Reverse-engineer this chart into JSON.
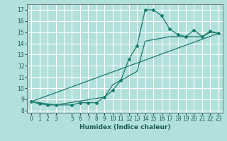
{
  "xlabel": "Humidex (Indice chaleur)",
  "ylabel": "",
  "background_color": "#b2e0dc",
  "grid_color": "#ffffff",
  "line_color": "#1a7a6e",
  "xlim": [
    -0.5,
    23.5
  ],
  "ylim": [
    7.8,
    17.5
  ],
  "yticks": [
    8,
    9,
    10,
    11,
    12,
    13,
    14,
    15,
    16,
    17
  ],
  "xtick_positions": [
    0,
    1,
    2,
    3,
    5,
    6,
    7,
    8,
    9,
    10,
    11,
    12,
    13,
    14,
    15,
    16,
    17,
    18,
    19,
    20,
    21,
    22,
    23
  ],
  "xtick_labels": [
    "0",
    "1",
    "2",
    "3",
    "5",
    "6",
    "7",
    "8",
    "9",
    "10",
    "11",
    "12",
    "13",
    "14",
    "15",
    "16",
    "17",
    "18",
    "19",
    "20",
    "21",
    "22",
    "23"
  ],
  "grid_x": [
    0,
    1,
    2,
    3,
    4,
    5,
    6,
    7,
    8,
    9,
    10,
    11,
    12,
    13,
    14,
    15,
    16,
    17,
    18,
    19,
    20,
    21,
    22,
    23
  ],
  "line1_x": [
    0,
    1,
    2,
    3,
    5,
    6,
    7,
    8,
    9,
    10,
    11,
    12,
    13,
    14,
    15,
    16,
    17,
    18,
    19,
    20,
    21,
    22,
    23
  ],
  "line1_y": [
    8.8,
    8.6,
    8.5,
    8.5,
    8.5,
    8.7,
    8.7,
    8.7,
    9.2,
    9.8,
    10.7,
    12.6,
    13.8,
    17.0,
    17.0,
    16.5,
    15.3,
    14.8,
    14.6,
    15.2,
    14.6,
    15.1,
    14.9
  ],
  "line2_x": [
    0,
    3,
    9,
    10,
    13,
    14,
    17,
    18,
    21,
    22,
    23
  ],
  "line2_y": [
    8.8,
    8.5,
    9.2,
    10.3,
    11.5,
    14.2,
    14.6,
    14.6,
    14.6,
    15.0,
    14.9
  ],
  "line3_x": [
    0,
    23
  ],
  "line3_y": [
    8.8,
    14.9
  ],
  "xlabel_fontsize": 6.5,
  "tick_fontsize": 5.5
}
